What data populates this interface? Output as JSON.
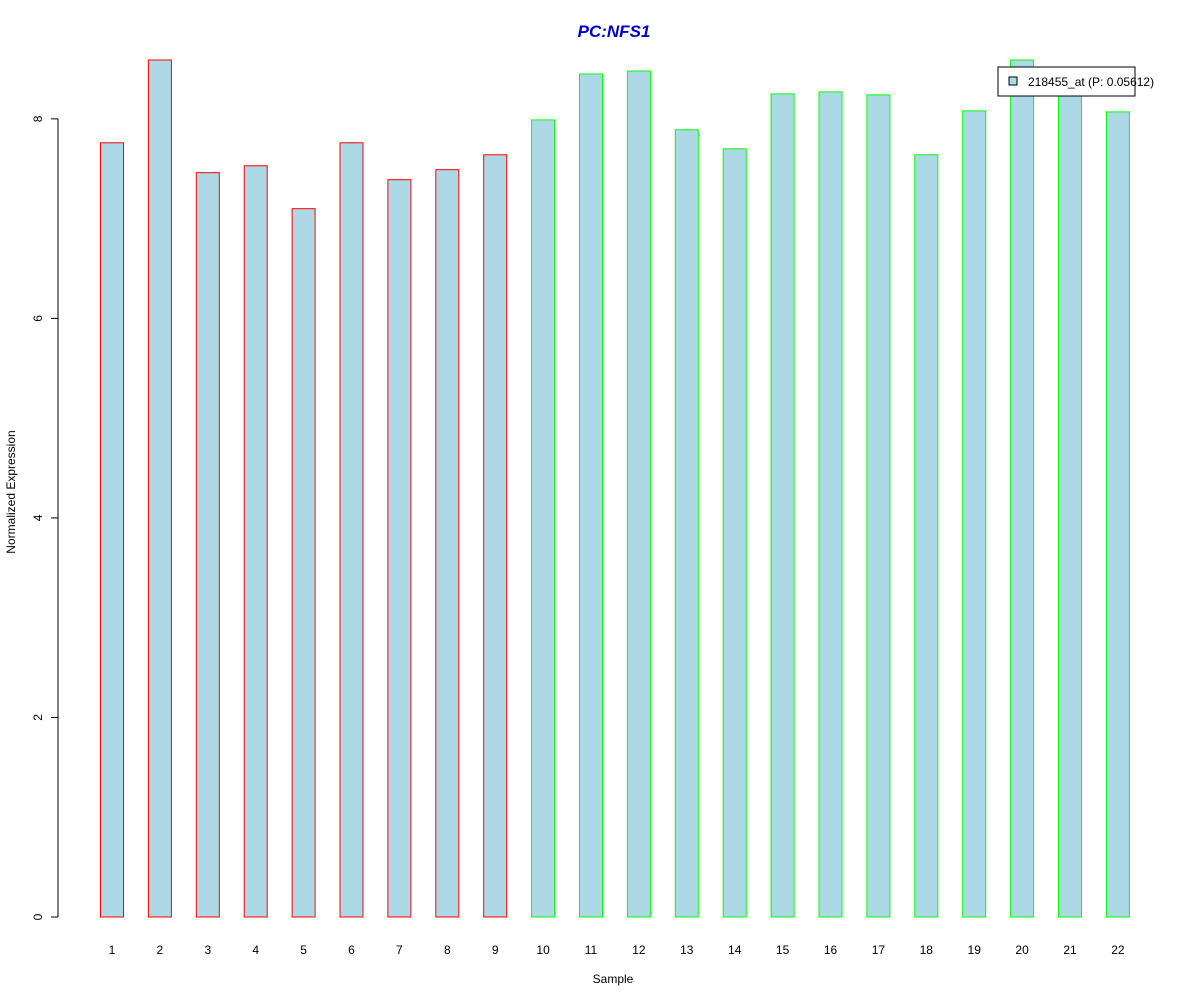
{
  "chart_data": {
    "type": "bar",
    "title": "PC:NFS1",
    "xlabel": "Sample",
    "ylabel": "Normalized Expression",
    "categories": [
      "1",
      "2",
      "3",
      "4",
      "5",
      "6",
      "7",
      "8",
      "9",
      "10",
      "11",
      "12",
      "13",
      "14",
      "15",
      "16",
      "17",
      "18",
      "19",
      "20",
      "21",
      "22"
    ],
    "values": [
      7.76,
      8.59,
      7.46,
      7.53,
      7.1,
      7.76,
      7.39,
      7.49,
      7.64,
      7.99,
      8.45,
      8.48,
      7.89,
      7.7,
      8.25,
      8.27,
      8.24,
      7.64,
      8.08,
      8.59,
      8.31,
      8.07
    ],
    "ylim": [
      0,
      8.6
    ],
    "yticks": [
      0,
      2,
      4,
      6,
      8
    ],
    "grid": false,
    "fill_color": "#add8e6",
    "group_border_colors": [
      "#ff0000",
      "#ff0000",
      "#ff0000",
      "#ff0000",
      "#ff0000",
      "#ff0000",
      "#ff0000",
      "#ff0000",
      "#ff0000",
      "#00ff00",
      "#00ff00",
      "#00ff00",
      "#00ff00",
      "#00ff00",
      "#00ff00",
      "#00ff00",
      "#00ff00",
      "#00ff00",
      "#00ff00",
      "#00ff00",
      "#00ff00",
      "#00ff00"
    ],
    "title_color": "#0000cd",
    "legend": {
      "placement": "top-right",
      "entries": [
        {
          "label": "218455_at (P: 0.05612)",
          "color": "#add8e6"
        }
      ]
    }
  }
}
